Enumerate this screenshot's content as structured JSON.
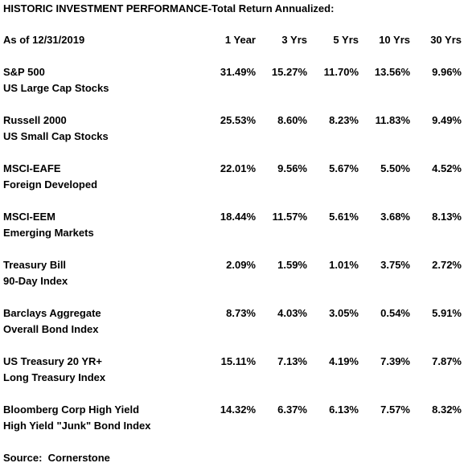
{
  "title": "HISTORIC INVESTMENT PERFORMANCE-Total Return Annualized:",
  "table": {
    "header": [
      "As of 12/31/2019",
      "1 Year",
      "3 Yrs",
      "5 Yrs",
      "10 Yrs",
      "30 Yrs"
    ],
    "rows": [
      {
        "name": "S&P 500",
        "subtitle": "US Large Cap Stocks",
        "values": [
          "31.49%",
          "15.27%",
          "11.70%",
          "13.56%",
          "9.96%"
        ]
      },
      {
        "name": "Russell 2000",
        "subtitle": "US Small Cap Stocks",
        "values": [
          "25.53%",
          "8.60%",
          "8.23%",
          "11.83%",
          "9.49%"
        ]
      },
      {
        "name": "MSCI-EAFE",
        "subtitle": "Foreign Developed",
        "values": [
          "22.01%",
          "9.56%",
          "5.67%",
          "5.50%",
          "4.52%"
        ]
      },
      {
        "name": "MSCI-EEM",
        "subtitle": "Emerging Markets",
        "values": [
          "18.44%",
          "11.57%",
          "5.61%",
          "3.68%",
          "8.13%"
        ]
      },
      {
        "name": "Treasury Bill",
        "subtitle": "90-Day Index",
        "values": [
          "2.09%",
          "1.59%",
          "1.01%",
          "3.75%",
          "2.72%"
        ]
      },
      {
        "name": "Barclays Aggregate",
        "subtitle": "Overall Bond Index",
        "values": [
          "8.73%",
          "4.03%",
          "3.05%",
          "0.54%",
          "5.91%"
        ]
      },
      {
        "name": "US Treasury 20 YR+",
        "subtitle": "Long Treasury Index",
        "values": [
          "15.11%",
          "7.13%",
          "4.19%",
          "7.39%",
          "7.87%"
        ]
      },
      {
        "name": "Bloomberg Corp High Yield",
        "subtitle": "High Yield \"Junk\" Bond Index",
        "values": [
          "14.32%",
          "6.37%",
          "6.13%",
          "7.57%",
          "8.32%"
        ]
      }
    ]
  },
  "source": "Source:  Cornerstone"
}
